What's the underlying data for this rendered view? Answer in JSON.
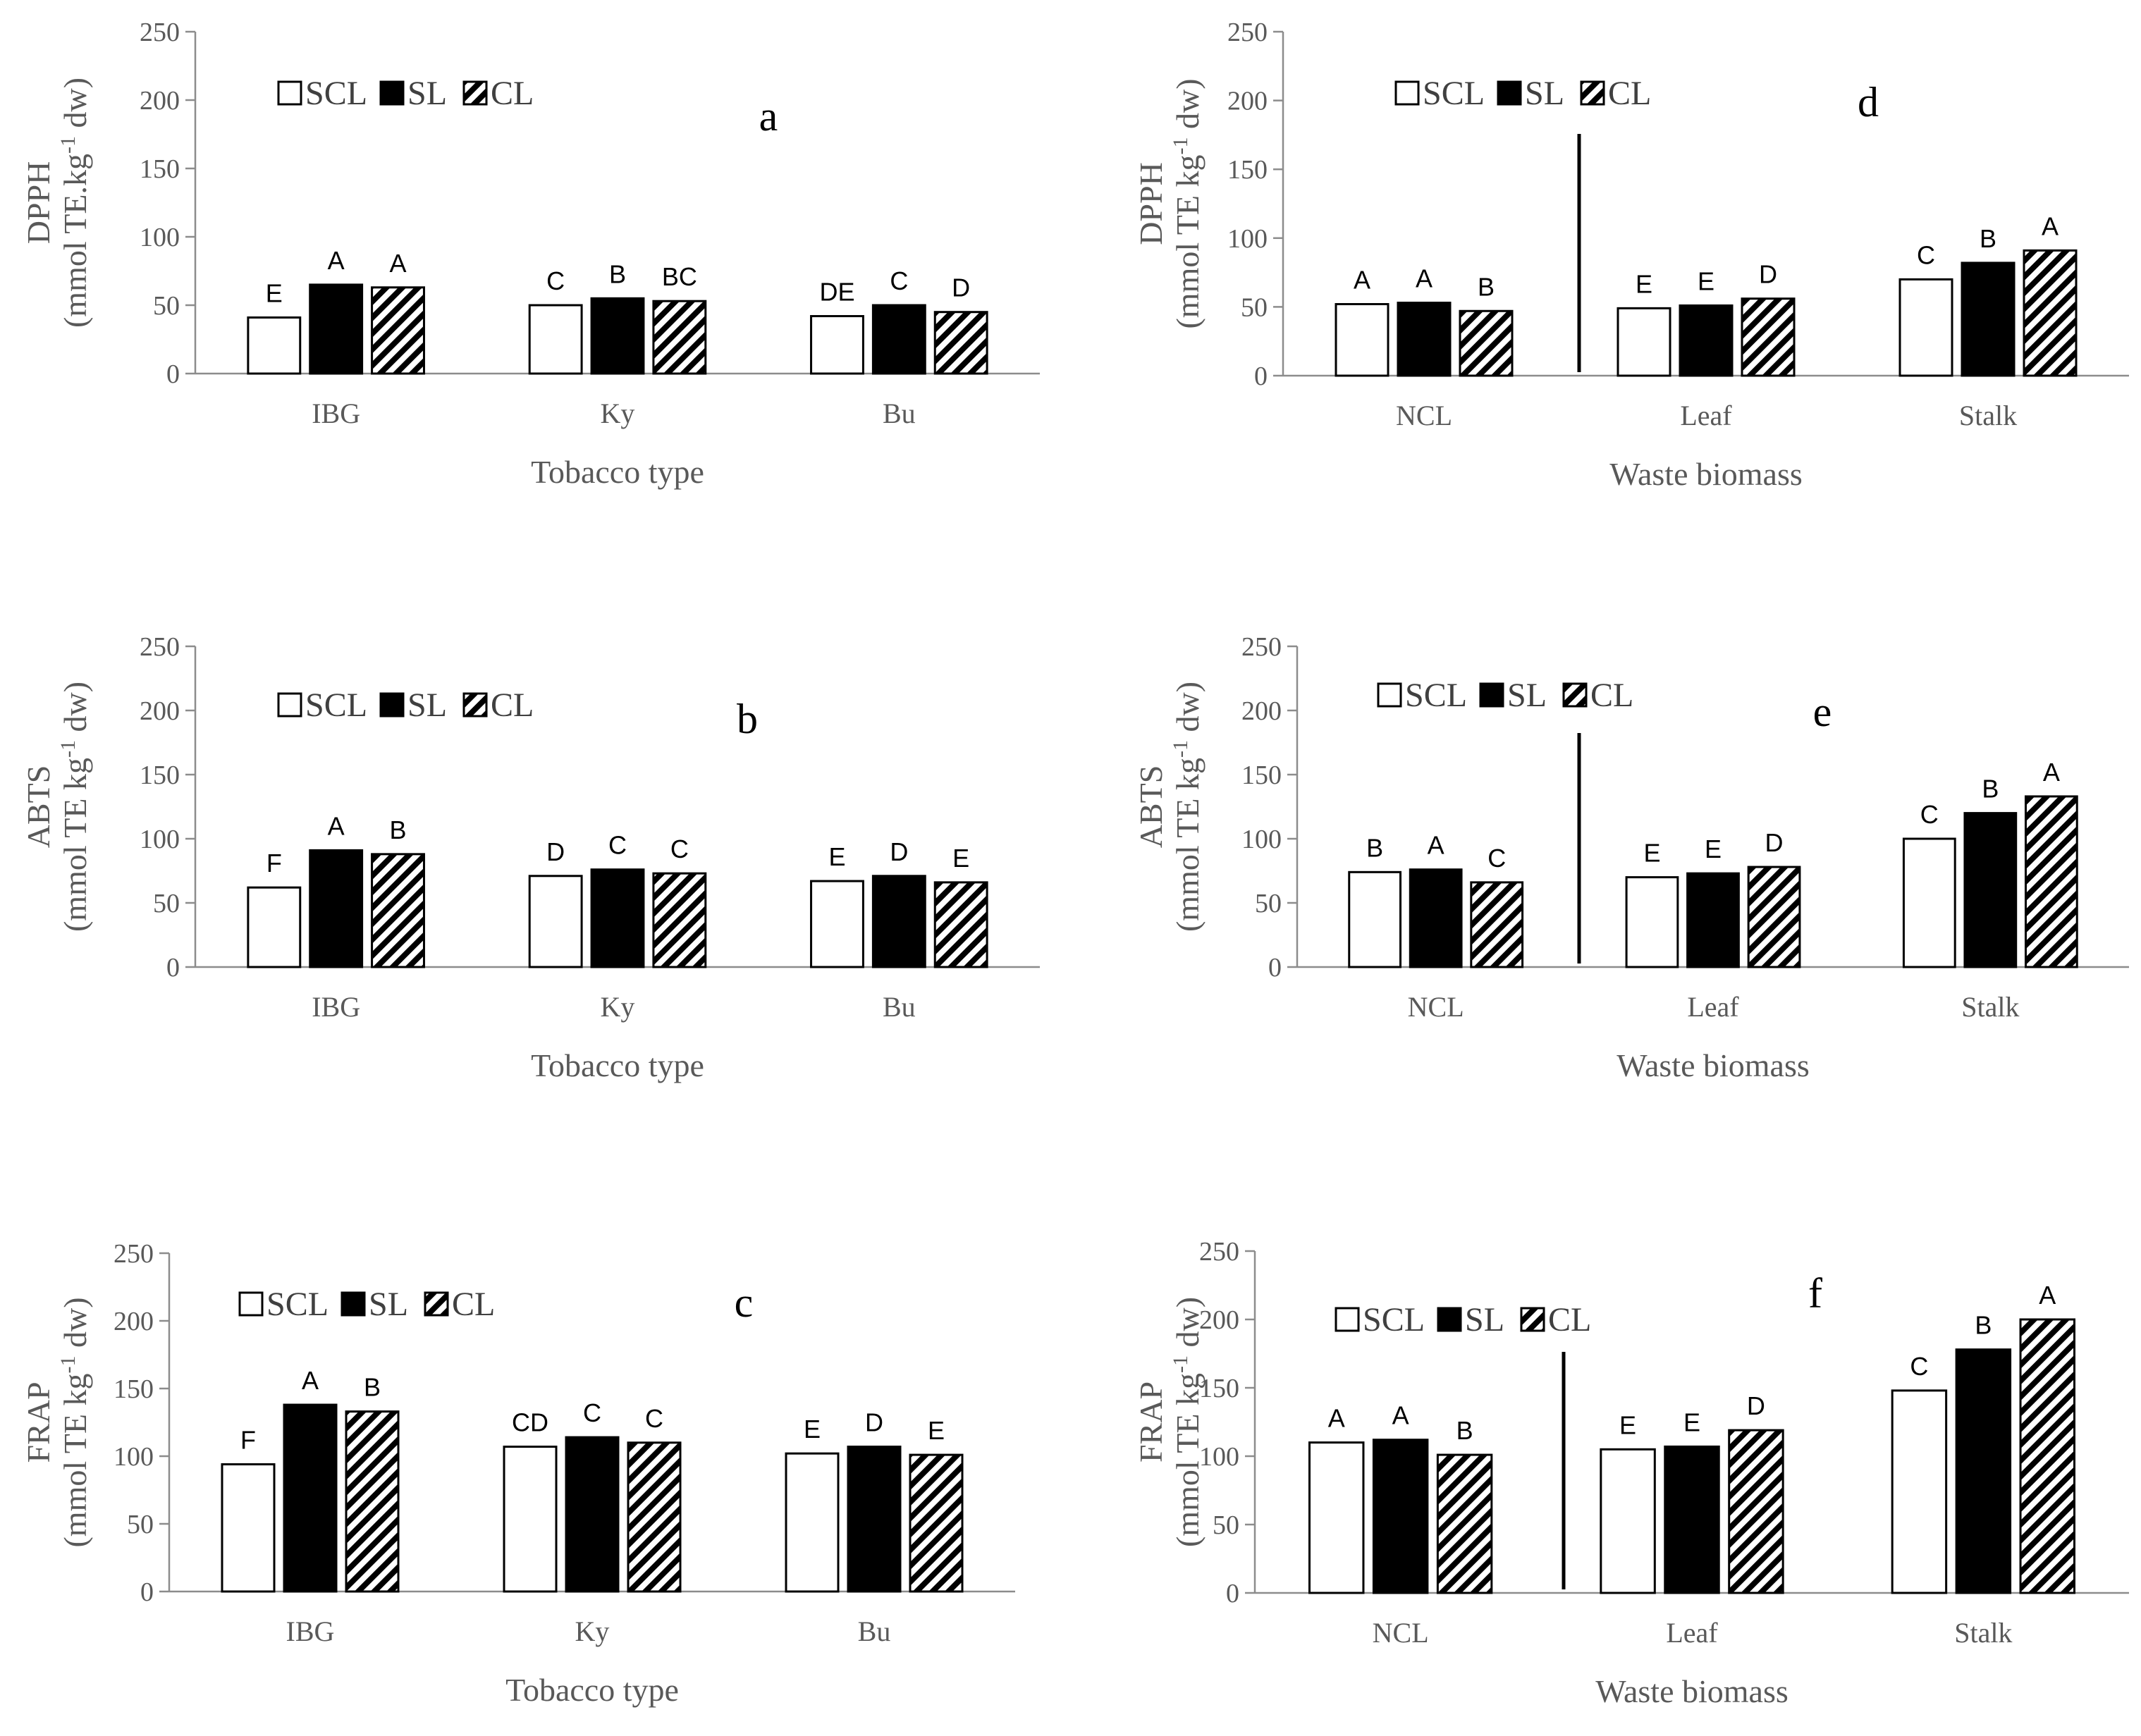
{
  "colors": {
    "axis": "#8c8c8c",
    "text": "#595959",
    "bar_stroke": "#000000",
    "scl_fill": "#ffffff",
    "sl_fill": "#000000"
  },
  "legend_labels": [
    "SCL",
    "SL",
    "CL"
  ],
  "chart_data": [
    {
      "id": "a",
      "type": "bar",
      "panel_letter": "a",
      "y_title_line1": "DPPH",
      "y_title_line2": "(mmol TE.kg",
      "y_title_sup": "-1",
      "y_title_end": " dw)",
      "xlabel": "Tobacco type",
      "ylim": [
        0,
        250
      ],
      "ticks": [
        0,
        50,
        100,
        150,
        200,
        250
      ],
      "categories": [
        "IBG",
        "Ky",
        "Bu"
      ],
      "series": [
        {
          "name": "SCL",
          "values": [
            41,
            50,
            42
          ]
        },
        {
          "name": "SL",
          "values": [
            65,
            55,
            50
          ]
        },
        {
          "name": "CL",
          "values": [
            63,
            53,
            45
          ]
        }
      ],
      "letters": [
        [
          "E",
          "A",
          "A"
        ],
        [
          "C",
          "B",
          "BC"
        ],
        [
          "DE",
          "C",
          "D"
        ]
      ],
      "divider": false
    },
    {
      "id": "b",
      "type": "bar",
      "panel_letter": "b",
      "y_title_line1": "ABTS",
      "y_title_line2": "(mmol TE kg",
      "y_title_sup": "-1",
      "y_title_end": " dw)",
      "xlabel": "Tobacco type",
      "ylim": [
        0,
        250
      ],
      "ticks": [
        0,
        50,
        100,
        150,
        200,
        250
      ],
      "categories": [
        "IBG",
        "Ky",
        "Bu"
      ],
      "series": [
        {
          "name": "SCL",
          "values": [
            62,
            71,
            67
          ]
        },
        {
          "name": "SL",
          "values": [
            91,
            76,
            71
          ]
        },
        {
          "name": "CL",
          "values": [
            88,
            73,
            66
          ]
        }
      ],
      "letters": [
        [
          "F",
          "A",
          "B"
        ],
        [
          "D",
          "C",
          "C"
        ],
        [
          "E",
          "D",
          "E"
        ]
      ],
      "divider": false
    },
    {
      "id": "c",
      "type": "bar",
      "panel_letter": "c",
      "y_title_line1": "FRAP",
      "y_title_line2": "(mmol TE kg",
      "y_title_sup": "-1",
      "y_title_end": " dw)",
      "xlabel": "Tobacco type",
      "ylim": [
        0,
        250
      ],
      "ticks": [
        0,
        50,
        100,
        150,
        200,
        250
      ],
      "categories": [
        "IBG",
        "Ky",
        "Bu"
      ],
      "series": [
        {
          "name": "SCL",
          "values": [
            94,
            107,
            102
          ]
        },
        {
          "name": "SL",
          "values": [
            138,
            114,
            107
          ]
        },
        {
          "name": "CL",
          "values": [
            133,
            110,
            101
          ]
        }
      ],
      "letters": [
        [
          "F",
          "A",
          "B"
        ],
        [
          "CD",
          "C",
          "C"
        ],
        [
          "E",
          "D",
          "E"
        ]
      ],
      "divider": false
    },
    {
      "id": "d",
      "type": "bar",
      "panel_letter": "d",
      "y_title_line1": "DPPH",
      "y_title_line2": "(mmol TE kg",
      "y_title_sup": "-1",
      "y_title_end": " dw)",
      "xlabel": "Waste biomass",
      "ylim": [
        0,
        250
      ],
      "ticks": [
        0,
        50,
        100,
        150,
        200,
        250
      ],
      "categories": [
        "NCL",
        "Leaf",
        "Stalk"
      ],
      "series": [
        {
          "name": "SCL",
          "values": [
            52,
            49,
            70
          ]
        },
        {
          "name": "SL",
          "values": [
            53,
            51,
            82
          ]
        },
        {
          "name": "CL",
          "values": [
            47,
            56,
            91
          ]
        }
      ],
      "letters": [
        [
          "A",
          "A",
          "B"
        ],
        [
          "E",
          "E",
          "D"
        ],
        [
          "C",
          "B",
          "A"
        ]
      ],
      "divider": true
    },
    {
      "id": "e",
      "type": "bar",
      "panel_letter": "e",
      "y_title_line1": "ABTS",
      "y_title_line2": "(mmol TE kg",
      "y_title_sup": "-1",
      "y_title_end": " dw)",
      "xlabel": "Waste biomass",
      "ylim": [
        0,
        250
      ],
      "ticks": [
        0,
        50,
        100,
        150,
        200,
        250
      ],
      "categories": [
        "NCL",
        "Leaf",
        "Stalk"
      ],
      "series": [
        {
          "name": "SCL",
          "values": [
            74,
            70,
            100
          ]
        },
        {
          "name": "SL",
          "values": [
            76,
            73,
            120
          ]
        },
        {
          "name": "CL",
          "values": [
            66,
            78,
            133
          ]
        }
      ],
      "letters": [
        [
          "B",
          "A",
          "C"
        ],
        [
          "E",
          "E",
          "D"
        ],
        [
          "C",
          "B",
          "A"
        ]
      ],
      "divider": true
    },
    {
      "id": "f",
      "type": "bar",
      "panel_letter": "f",
      "y_title_line1": "FRAP",
      "y_title_line2": "(mmol TE kg",
      "y_title_sup": "-1",
      "y_title_end": " dw)",
      "xlabel": "Waste biomass",
      "ylim": [
        0,
        250
      ],
      "ticks": [
        0,
        50,
        100,
        150,
        200,
        250
      ],
      "categories": [
        "NCL",
        "Leaf",
        "Stalk"
      ],
      "series": [
        {
          "name": "SCL",
          "values": [
            110,
            105,
            148
          ]
        },
        {
          "name": "SL",
          "values": [
            112,
            107,
            178
          ]
        },
        {
          "name": "CL",
          "values": [
            101,
            119,
            200
          ]
        }
      ],
      "letters": [
        [
          "A",
          "A",
          "B"
        ],
        [
          "E",
          "E",
          "D"
        ],
        [
          "C",
          "B",
          "A"
        ]
      ],
      "divider": true
    }
  ]
}
